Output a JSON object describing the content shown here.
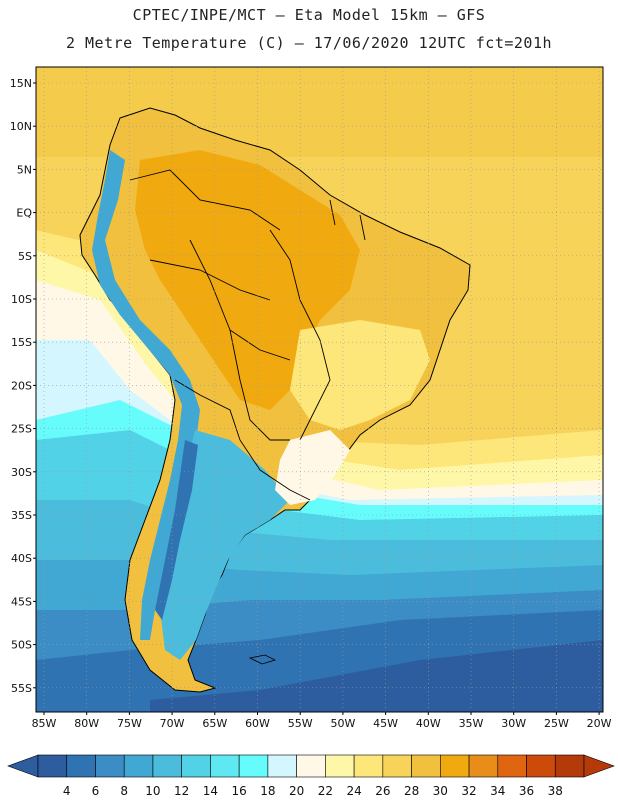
{
  "header": {
    "line1": "CPTEC/INPE/MCT –  Eta Model 15km – GFS",
    "line2": "2 Metre Temperature (C) – 17/06/2020 12UTC fct=201h"
  },
  "map": {
    "lat_labels": [
      "15N",
      "10N",
      "5N",
      "EQ",
      "5S",
      "10S",
      "15S",
      "20S",
      "25S",
      "30S",
      "35S",
      "40S",
      "45S",
      "50S",
      "55S"
    ],
    "lon_labels": [
      "85W",
      "80W",
      "75W",
      "70W",
      "65W",
      "60W",
      "55W",
      "50W",
      "45W",
      "40W",
      "35W",
      "30W",
      "25W",
      "20W"
    ]
  },
  "colorbar": {
    "labels": [
      "4",
      "6",
      "8",
      "10",
      "12",
      "14",
      "16",
      "18",
      "20",
      "22",
      "24",
      "26",
      "28",
      "30",
      "32",
      "34",
      "36",
      "38"
    ],
    "colors": [
      "#2d5d9f",
      "#2f73b3",
      "#3c8cc5",
      "#41a8d4",
      "#4bbcdb",
      "#52d2e6",
      "#5ee8f2",
      "#66fcfc",
      "#d4f6ff",
      "#fff8e6",
      "#fff7a8",
      "#fde77a",
      "#f7d35a",
      "#f2c03f",
      "#f1a910",
      "#e88c1a",
      "#e06510",
      "#cc4a0a",
      "#b53a0a"
    ]
  },
  "palette": {
    "ocean_north": "#f7d35a",
    "ocean_south_deep": "#2d5d9f",
    "land_warm": "#f1a910",
    "border": "#000000"
  }
}
